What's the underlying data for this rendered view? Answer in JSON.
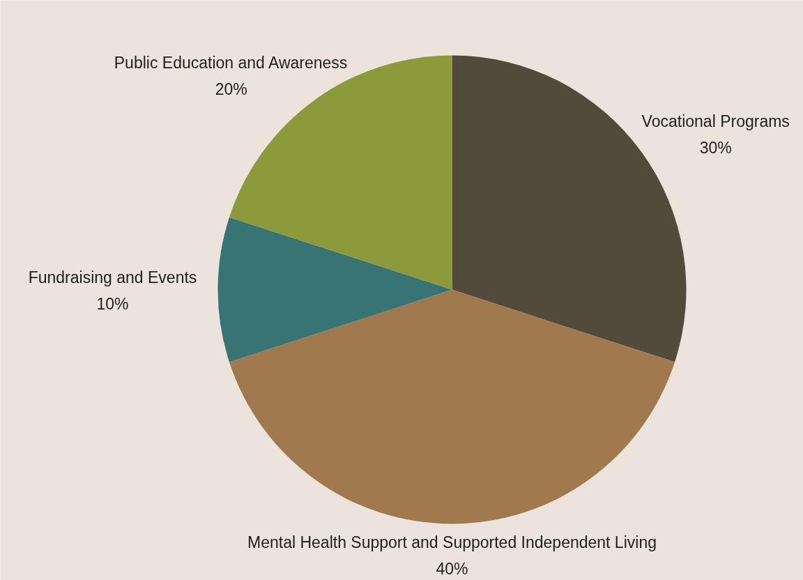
{
  "chart_data": {
    "type": "pie",
    "categories": [
      "Vocational Programs",
      "Mental Health Support and Supported Independent Living",
      "Fundraising and Events",
      "Public Education and Awareness"
    ],
    "values": [
      30,
      40,
      10,
      20
    ],
    "colors": [
      "#524a3a",
      "#a07a4e",
      "#387473",
      "#8c9a3c"
    ],
    "value_labels": [
      "30%",
      "40%",
      "10%",
      "20%"
    ]
  }
}
